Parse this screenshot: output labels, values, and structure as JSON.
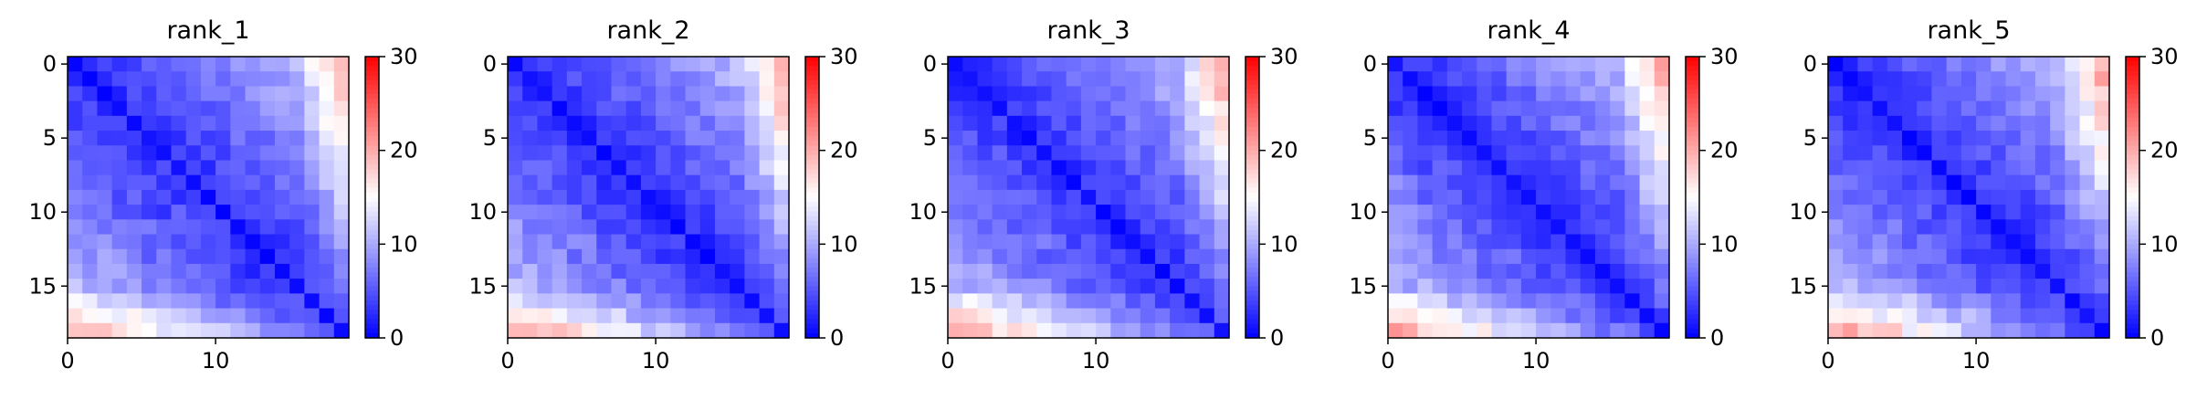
{
  "chart_data": [
    {
      "type": "heatmap",
      "title": "rank_1",
      "size": 19,
      "seed": 11,
      "xticks": [
        "0",
        "10"
      ],
      "yticks": [
        "0",
        "5",
        "10",
        "15"
      ],
      "colorbar": {
        "ticks": [
          "0",
          "10",
          "20",
          "30"
        ],
        "vmin": 0,
        "vmax": 30,
        "cmap": "bwr"
      }
    },
    {
      "type": "heatmap",
      "title": "rank_2",
      "size": 19,
      "seed": 23,
      "xticks": [
        "0",
        "10"
      ],
      "yticks": [
        "0",
        "5",
        "10",
        "15"
      ],
      "colorbar": {
        "ticks": [
          "0",
          "10",
          "20",
          "30"
        ],
        "vmin": 0,
        "vmax": 30,
        "cmap": "bwr"
      }
    },
    {
      "type": "heatmap",
      "title": "rank_3",
      "size": 19,
      "seed": 37,
      "xticks": [
        "0",
        "10"
      ],
      "yticks": [
        "0",
        "5",
        "10",
        "15"
      ],
      "colorbar": {
        "ticks": [
          "0",
          "10",
          "20",
          "30"
        ],
        "vmin": 0,
        "vmax": 30,
        "cmap": "bwr"
      }
    },
    {
      "type": "heatmap",
      "title": "rank_4",
      "size": 19,
      "seed": 41,
      "xticks": [
        "0",
        "10"
      ],
      "yticks": [
        "0",
        "5",
        "10",
        "15"
      ],
      "colorbar": {
        "ticks": [
          "0",
          "10",
          "20",
          "30"
        ],
        "vmin": 0,
        "vmax": 30,
        "cmap": "bwr"
      }
    },
    {
      "type": "heatmap",
      "title": "rank_5",
      "size": 19,
      "seed": 53,
      "xticks": [
        "0",
        "10"
      ],
      "yticks": [
        "0",
        "5",
        "10",
        "15"
      ],
      "colorbar": {
        "ticks": [
          "0",
          "10",
          "20",
          "30"
        ],
        "vmin": 0,
        "vmax": 30,
        "cmap": "bwr"
      }
    }
  ]
}
